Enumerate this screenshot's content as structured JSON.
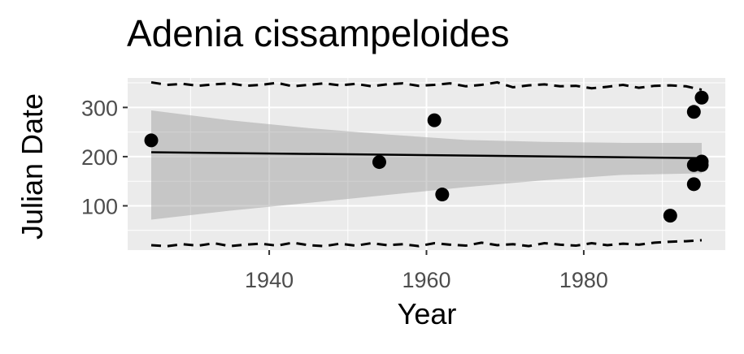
{
  "chart_data": {
    "type": "scatter",
    "title": "Adenia cissampeloides",
    "xlabel": "Year",
    "ylabel": "Julian Date",
    "xlim": [
      1922,
      1998
    ],
    "ylim": [
      10,
      360
    ],
    "xticks": [
      1940,
      1960,
      1980
    ],
    "yticks": [
      100,
      200,
      300
    ],
    "grid": true,
    "points": [
      {
        "x": 1925,
        "y": 233
      },
      {
        "x": 1954,
        "y": 189
      },
      {
        "x": 1961,
        "y": 274
      },
      {
        "x": 1962,
        "y": 123
      },
      {
        "x": 1991,
        "y": 80
      },
      {
        "x": 1994,
        "y": 291
      },
      {
        "x": 1994,
        "y": 183
      },
      {
        "x": 1994,
        "y": 144
      },
      {
        "x": 1995,
        "y": 320
      },
      {
        "x": 1995,
        "y": 190
      },
      {
        "x": 1995,
        "y": 183
      }
    ],
    "fit_line": {
      "x": [
        1925,
        1995
      ],
      "y": [
        209,
        197
      ]
    },
    "confidence_band": {
      "x": [
        1925,
        1935,
        1945,
        1955,
        1965,
        1975,
        1985,
        1995
      ],
      "lower": [
        72,
        90,
        106,
        122,
        138,
        152,
        163,
        166
      ],
      "upper": [
        294,
        274,
        258,
        245,
        234,
        230,
        228,
        228
      ]
    },
    "upper_dashed": {
      "x": [
        1925,
        1927,
        1929,
        1931,
        1933,
        1935,
        1937,
        1939,
        1941,
        1943,
        1945,
        1947,
        1949,
        1951,
        1953,
        1955,
        1957,
        1959,
        1961,
        1963,
        1965,
        1967,
        1969,
        1971,
        1973,
        1975,
        1977,
        1979,
        1981,
        1983,
        1985,
        1987,
        1989,
        1991,
        1993,
        1995
      ],
      "y": [
        351,
        346,
        348,
        344,
        347,
        349,
        344,
        346,
        350,
        343,
        346,
        349,
        345,
        348,
        343,
        347,
        349,
        344,
        346,
        349,
        343,
        346,
        351,
        341,
        345,
        347,
        343,
        344,
        339,
        342,
        346,
        340,
        344,
        345,
        343,
        336
      ]
    },
    "lower_dashed": {
      "x": [
        1925,
        1927,
        1929,
        1931,
        1933,
        1935,
        1937,
        1939,
        1941,
        1943,
        1945,
        1947,
        1949,
        1951,
        1953,
        1955,
        1957,
        1959,
        1961,
        1963,
        1965,
        1967,
        1969,
        1971,
        1973,
        1975,
        1977,
        1979,
        1981,
        1983,
        1985,
        1987,
        1989,
        1991,
        1993,
        1995
      ],
      "y": [
        20,
        18,
        22,
        19,
        24,
        18,
        21,
        23,
        19,
        25,
        20,
        18,
        23,
        19,
        24,
        20,
        22,
        18,
        24,
        21,
        19,
        25,
        20,
        22,
        18,
        24,
        21,
        19,
        24,
        20,
        23,
        21,
        25,
        27,
        28,
        30
      ]
    }
  }
}
